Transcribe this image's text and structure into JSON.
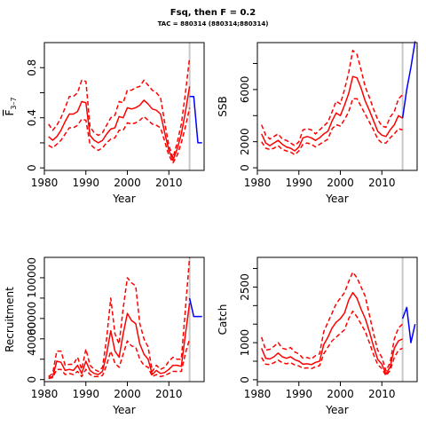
{
  "header": {
    "title": "Fsq, then F = 0.2",
    "subtitle": "TAC = 880314 (880314;880314)"
  },
  "colors": {
    "historical": "#ff0000",
    "projection": "#0000ff",
    "vline": "#c8c8c8",
    "axis": "#000000"
  },
  "chart_data": [
    {
      "type": "line",
      "panel": "top-left",
      "xlabel": "Year",
      "ylabel_main": "F",
      "ylabel_sub": "3–7",
      "xlim": [
        1980,
        2018.5
      ],
      "ylim": [
        -0.02,
        1.0
      ],
      "xticks": [
        1980,
        1990,
        2000,
        2010
      ],
      "yticks": [
        0.0,
        0.4,
        0.8
      ],
      "yticks_minor": [
        0.2,
        0.6
      ],
      "vline_x": 2015,
      "x": [
        1981,
        1982,
        1983,
        1984,
        1985,
        1986,
        1987,
        1988,
        1989,
        1990,
        1991,
        1992,
        1993,
        1994,
        1995,
        1996,
        1997,
        1998,
        1999,
        2000,
        2001,
        2002,
        2003,
        2004,
        2005,
        2006,
        2007,
        2008,
        2009,
        2010,
        2011,
        2012,
        2013,
        2014,
        2015
      ],
      "series": [
        {
          "role": "upper",
          "values": [
            0.35,
            0.3,
            0.34,
            0.4,
            0.48,
            0.57,
            0.57,
            0.6,
            0.7,
            0.69,
            0.33,
            0.28,
            0.26,
            0.28,
            0.34,
            0.4,
            0.42,
            0.53,
            0.52,
            0.62,
            0.62,
            0.64,
            0.65,
            0.7,
            0.66,
            0.62,
            0.6,
            0.56,
            0.36,
            0.18,
            0.08,
            0.2,
            0.35,
            0.6,
            0.88
          ]
        },
        {
          "role": "median",
          "values": [
            0.25,
            0.22,
            0.25,
            0.3,
            0.37,
            0.43,
            0.43,
            0.45,
            0.53,
            0.52,
            0.26,
            0.22,
            0.2,
            0.22,
            0.27,
            0.31,
            0.32,
            0.41,
            0.4,
            0.48,
            0.47,
            0.48,
            0.5,
            0.54,
            0.51,
            0.47,
            0.46,
            0.43,
            0.28,
            0.14,
            0.06,
            0.15,
            0.27,
            0.45,
            0.65
          ]
        },
        {
          "role": "lower",
          "values": [
            0.18,
            0.16,
            0.19,
            0.22,
            0.27,
            0.32,
            0.32,
            0.34,
            0.39,
            0.38,
            0.19,
            0.16,
            0.14,
            0.16,
            0.2,
            0.23,
            0.24,
            0.3,
            0.3,
            0.36,
            0.35,
            0.36,
            0.38,
            0.41,
            0.38,
            0.35,
            0.34,
            0.32,
            0.21,
            0.1,
            0.04,
            0.1,
            0.2,
            0.33,
            0.48
          ]
        },
        {
          "role": "projection",
          "x": [
            2015,
            2016,
            2017,
            2018
          ],
          "values": [
            0.57,
            0.57,
            0.2,
            0.2
          ]
        }
      ]
    },
    {
      "type": "line",
      "panel": "top-right",
      "xlabel": "Year",
      "ylabel_main": "SSB",
      "ylabel_sub": "",
      "xlim": [
        1980,
        2018.5
      ],
      "ylim": [
        -200,
        9600
      ],
      "xticks": [
        1980,
        1990,
        2000,
        2010
      ],
      "yticks": [
        0,
        2000,
        6000
      ],
      "yticks_minor": [
        4000,
        8000
      ],
      "vline_x": 2015,
      "x": [
        1981,
        1982,
        1983,
        1984,
        1985,
        1986,
        1987,
        1988,
        1989,
        1990,
        1991,
        1992,
        1993,
        1994,
        1995,
        1996,
        1997,
        1998,
        1999,
        2000,
        2001,
        2002,
        2003,
        2004,
        2005,
        2006,
        2007,
        2008,
        2009,
        2010,
        2011,
        2012,
        2013,
        2014,
        2015
      ],
      "series": [
        {
          "role": "upper",
          "values": [
            3300,
            2500,
            2200,
            2400,
            2600,
            2200,
            2100,
            1900,
            1700,
            2000,
            2900,
            3000,
            2900,
            2600,
            2900,
            3200,
            3500,
            4300,
            5100,
            4900,
            6000,
            7300,
            9000,
            8700,
            7500,
            6200,
            5400,
            4500,
            3700,
            3200,
            3100,
            3900,
            4300,
            5300,
            5600
          ]
        },
        {
          "role": "median",
          "values": [
            2600,
            1900,
            1700,
            1900,
            2100,
            1800,
            1600,
            1500,
            1300,
            1600,
            2300,
            2400,
            2300,
            2100,
            2300,
            2600,
            2800,
            3600,
            4200,
            4000,
            4800,
            5700,
            7000,
            6900,
            6100,
            5100,
            4400,
            3600,
            2800,
            2500,
            2400,
            2900,
            3300,
            4000,
            3800
          ]
        },
        {
          "role": "lower",
          "values": [
            2000,
            1500,
            1400,
            1500,
            1700,
            1400,
            1300,
            1200,
            1000,
            1300,
            1800,
            1900,
            1800,
            1600,
            1800,
            2000,
            2200,
            3000,
            3300,
            3200,
            3700,
            4300,
            5300,
            5300,
            4700,
            4100,
            3500,
            2900,
            2200,
            1900,
            1900,
            2300,
            2600,
            3000,
            2900
          ]
        },
        {
          "role": "projection",
          "x": [
            2015,
            2016,
            2017,
            2018
          ],
          "values": [
            3800,
            6000,
            7700,
            9700
          ]
        }
      ]
    },
    {
      "type": "line",
      "panel": "bottom-left",
      "xlabel": "Year",
      "ylabel_main": "Recruitment",
      "ylabel_sub": "",
      "xlim": [
        1980,
        2018.5
      ],
      "ylim": [
        -2000,
        120000
      ],
      "xticks": [
        1980,
        1990,
        2000,
        2010
      ],
      "yticks": [
        0,
        40000,
        60000,
        100000
      ],
      "yticks_minor": [
        20000,
        80000
      ],
      "vline_x": 2015,
      "x": [
        1981,
        1982,
        1983,
        1984,
        1985,
        1986,
        1987,
        1988,
        1989,
        1990,
        1991,
        1992,
        1993,
        1994,
        1995,
        1996,
        1997,
        1998,
        1999,
        2000,
        2001,
        2002,
        2003,
        2004,
        2005,
        2006,
        2007,
        2008,
        2009,
        2010,
        2011,
        2012,
        2013,
        2014,
        2015
      ],
      "series": [
        {
          "role": "upper",
          "values": [
            3000,
            6000,
            28000,
            28000,
            14000,
            15000,
            15000,
            22000,
            10000,
            30000,
            14000,
            10000,
            8000,
            12000,
            40000,
            80000,
            45000,
            35000,
            70000,
            100000,
            95000,
            92000,
            55000,
            40000,
            32000,
            8000,
            14000,
            10000,
            12000,
            18000,
            22000,
            20000,
            20000,
            70000,
            120000
          ]
        },
        {
          "role": "median",
          "values": [
            2000,
            3000,
            18000,
            17000,
            9000,
            10000,
            9000,
            14000,
            6000,
            18000,
            9000,
            6000,
            5000,
            8000,
            25000,
            48000,
            28000,
            22000,
            45000,
            65000,
            58000,
            55000,
            35000,
            25000,
            20000,
            5000,
            9000,
            6000,
            7000,
            10000,
            14000,
            14000,
            13000,
            45000,
            75000
          ]
        },
        {
          "role": "lower",
          "values": [
            1000,
            2000,
            10000,
            10000,
            5000,
            6000,
            5000,
            8000,
            3000,
            10000,
            5000,
            3000,
            3000,
            4000,
            14000,
            28000,
            16000,
            12000,
            25000,
            38000,
            33000,
            32000,
            20000,
            14000,
            12000,
            3000,
            5000,
            3000,
            4000,
            6000,
            8000,
            8000,
            8000,
            26000,
            40000
          ]
        },
        {
          "role": "projection",
          "x": [
            2015,
            2016,
            2017,
            2018
          ],
          "values": [
            80000,
            62000,
            62000,
            62000
          ]
        }
      ]
    },
    {
      "type": "line",
      "panel": "bottom-right",
      "xlabel": "Year",
      "ylabel_main": "Catch",
      "ylabel_sub": "",
      "xlim": [
        1980,
        2018.5
      ],
      "ylim": [
        -50,
        3300
      ],
      "xticks": [
        1980,
        1990,
        2000,
        2010
      ],
      "yticks": [
        0,
        1000,
        2500
      ],
      "yticks_minor": [
        500,
        1500,
        2000,
        3000
      ],
      "vline_x": 2015,
      "x": [
        1981,
        1982,
        1983,
        1984,
        1985,
        1986,
        1987,
        1988,
        1989,
        1990,
        1991,
        1992,
        1993,
        1994,
        1995,
        1996,
        1997,
        1998,
        1999,
        2000,
        2001,
        2002,
        2003,
        2004,
        2005,
        2006,
        2007,
        2008,
        2009,
        2010,
        2011,
        2012,
        2013,
        2014,
        2015
      ],
      "series": [
        {
          "role": "upper",
          "values": [
            1150,
            800,
            820,
            900,
            1000,
            850,
            820,
            870,
            750,
            700,
            580,
            600,
            560,
            650,
            700,
            1300,
            1550,
            1800,
            2050,
            2200,
            2350,
            2650,
            2900,
            2750,
            2500,
            2250,
            1750,
            1250,
            800,
            600,
            240,
            470,
            1100,
            1400,
            1500
          ]
        },
        {
          "role": "median",
          "values": [
            850,
            580,
            560,
            620,
            720,
            620,
            580,
            620,
            540,
            500,
            420,
            430,
            410,
            470,
            500,
            950,
            1150,
            1400,
            1550,
            1650,
            1800,
            2150,
            2350,
            2200,
            1900,
            1650,
            1300,
            900,
            550,
            420,
            150,
            350,
            850,
            1050,
            1100
          ]
        },
        {
          "role": "lower",
          "values": [
            600,
            420,
            410,
            460,
            530,
            460,
            430,
            460,
            400,
            370,
            310,
            320,
            300,
            350,
            380,
            700,
            880,
            1050,
            1150,
            1250,
            1350,
            1650,
            1850,
            1700,
            1500,
            1300,
            1000,
            680,
            410,
            300,
            110,
            250,
            600,
            800,
            850
          ]
        },
        {
          "role": "projection",
          "x": [
            2015,
            2016,
            2017,
            2018
          ],
          "values": [
            1650,
            1950,
            1000,
            1500
          ]
        }
      ]
    }
  ]
}
